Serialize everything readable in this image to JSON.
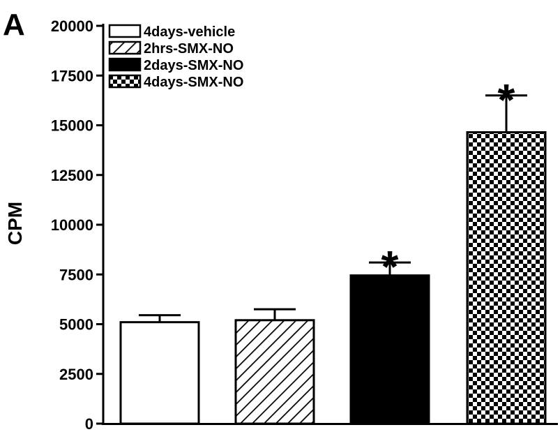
{
  "panel_label": "A",
  "chart_data": {
    "type": "bar",
    "ylabel": "CPM",
    "xlabel": "",
    "ylim": [
      0,
      20000
    ],
    "yticks": [
      0,
      2500,
      5000,
      7500,
      10000,
      12500,
      15000,
      17500,
      20000
    ],
    "legend_position": "top-left",
    "grid": false,
    "categories": [
      "4days-vehicle",
      "2hrs-SMX-NO",
      "2days-SMX-NO",
      "4days-SMX-NO"
    ],
    "series": [
      {
        "name": "4days-vehicle",
        "value": 5100,
        "error": 350,
        "fill": "white",
        "significance": ""
      },
      {
        "name": "2hrs-SMX-NO",
        "value": 5200,
        "error": 550,
        "fill": "hatch",
        "significance": ""
      },
      {
        "name": "2days-SMX-NO",
        "value": 7450,
        "error": 650,
        "fill": "black",
        "significance": "*"
      },
      {
        "name": "4days-SMX-NO",
        "value": 14650,
        "error": 1850,
        "fill": "checker",
        "significance": "*"
      }
    ]
  },
  "colors": {
    "ink": "#000000",
    "background": "#ffffff"
  }
}
